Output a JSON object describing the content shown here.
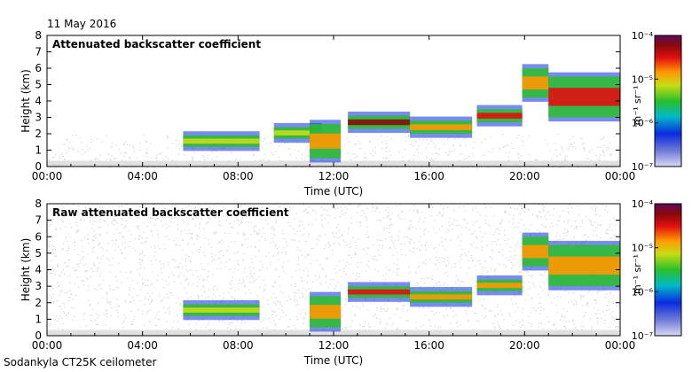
{
  "header": {
    "date": "11 May 2016"
  },
  "footer": {
    "instrument": "Sodankyla CT25K ceilometer"
  },
  "colors": {
    "frame": "#000000",
    "background_noise": "#d8d8d8",
    "scale": [
      "#d9d9f5",
      "#6f7bd7",
      "#0a2be0",
      "#00b9c8",
      "#2ac02a",
      "#c8dc15",
      "#ff9800",
      "#e11010",
      "#8b0a0a",
      "#5c0a5c"
    ]
  },
  "chart_data": [
    {
      "type": "heatmap",
      "title": "Attenuated backscatter coefficient",
      "xlabel": "Time (UTC)",
      "ylabel": "Height (km)",
      "xlim": [
        0,
        24
      ],
      "ylim": [
        0,
        8
      ],
      "xticks": [
        "00:00",
        "04:00",
        "08:00",
        "12:00",
        "16:00",
        "20:00",
        "00:00"
      ],
      "yticks": [
        "0",
        "1",
        "2",
        "3",
        "4",
        "5",
        "6",
        "7",
        "8"
      ],
      "colorbar": {
        "label": "m⁻¹ sr⁻¹",
        "ticks": [
          "10⁻⁷",
          "10⁻⁶",
          "10⁻⁵",
          "10⁻⁴"
        ],
        "scale": "log"
      },
      "layers": [
        {
          "t_start": 5.7,
          "t_end": 8.9,
          "base_km": 1.2,
          "top_km": 1.9,
          "level": 0.55
        },
        {
          "t_start": 9.5,
          "t_end": 11.5,
          "base_km": 1.7,
          "top_km": 2.4,
          "level": 0.6
        },
        {
          "t_start": 11.0,
          "t_end": 12.3,
          "base_km": 0.5,
          "top_km": 2.6,
          "level": 0.7
        },
        {
          "t_start": 12.6,
          "t_end": 15.2,
          "base_km": 2.3,
          "top_km": 3.1,
          "level": 0.85
        },
        {
          "t_start": 15.2,
          "t_end": 17.8,
          "base_km": 2.0,
          "top_km": 2.8,
          "level": 0.7
        },
        {
          "t_start": 18.0,
          "t_end": 19.9,
          "base_km": 2.7,
          "top_km": 3.5,
          "level": 0.75
        },
        {
          "t_start": 19.9,
          "t_end": 21.0,
          "base_km": 4.2,
          "top_km": 6.0,
          "level": 0.7
        },
        {
          "t_start": 21.0,
          "t_end": 24.0,
          "base_km": 3.0,
          "top_km": 5.5,
          "level": 0.75
        }
      ]
    },
    {
      "type": "heatmap",
      "title": "Raw attenuated backscatter coefficient",
      "xlabel": "Time (UTC)",
      "ylabel": "Height (km)",
      "xlim": [
        0,
        24
      ],
      "ylim": [
        0,
        8
      ],
      "xticks": [
        "00:00",
        "04:00",
        "08:00",
        "12:00",
        "16:00",
        "20:00",
        "00:00"
      ],
      "yticks": [
        "0",
        "1",
        "2",
        "3",
        "4",
        "5",
        "6",
        "7",
        "8"
      ],
      "colorbar": {
        "label": "m⁻¹ sr⁻¹",
        "ticks": [
          "10⁻⁷",
          "10⁻⁶",
          "10⁻⁵",
          "10⁻⁴"
        ],
        "scale": "log"
      },
      "layers": [
        {
          "t_start": 5.7,
          "t_end": 8.9,
          "base_km": 1.2,
          "top_km": 1.9,
          "level": 0.5
        },
        {
          "t_start": 11.0,
          "t_end": 12.3,
          "base_km": 0.5,
          "top_km": 2.4,
          "level": 0.7
        },
        {
          "t_start": 12.6,
          "t_end": 15.2,
          "base_km": 2.3,
          "top_km": 3.0,
          "level": 0.8
        },
        {
          "t_start": 15.2,
          "t_end": 17.8,
          "base_km": 2.0,
          "top_km": 2.7,
          "level": 0.65
        },
        {
          "t_start": 18.0,
          "t_end": 19.9,
          "base_km": 2.7,
          "top_km": 3.4,
          "level": 0.7
        },
        {
          "t_start": 19.9,
          "t_end": 21.0,
          "base_km": 4.2,
          "top_km": 6.0,
          "level": 0.65
        },
        {
          "t_start": 21.0,
          "t_end": 24.0,
          "base_km": 3.0,
          "top_km": 5.5,
          "level": 0.7
        }
      ]
    }
  ]
}
